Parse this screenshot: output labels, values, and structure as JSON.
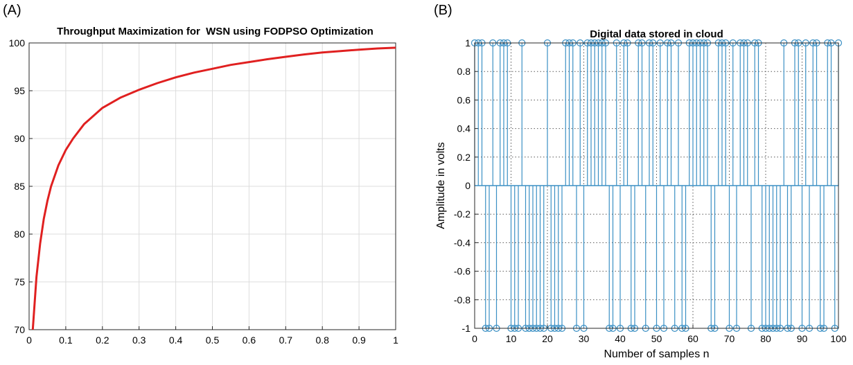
{
  "panels": {
    "a_label": "(A)",
    "b_label": "(B)"
  },
  "chart_data": [
    {
      "type": "line",
      "title": "Throughput Maximization for  WSN using FODPSO Optimization",
      "xlabel": "",
      "ylabel": "",
      "xlim": [
        0,
        1
      ],
      "ylim": [
        70,
        100
      ],
      "xticks": [
        0,
        0.1,
        0.2,
        0.3,
        0.4,
        0.5,
        0.6,
        0.7,
        0.8,
        0.9,
        1
      ],
      "xtick_labels": [
        "0",
        "0.1",
        "0.2",
        "0.3",
        "0.4",
        "0.5",
        "0.6",
        "0.7",
        "0.8",
        "0.9",
        "1"
      ],
      "yticks": [
        70,
        75,
        80,
        85,
        90,
        95,
        100
      ],
      "ytick_labels": [
        "70",
        "75",
        "80",
        "85",
        "90",
        "95",
        "100"
      ],
      "grid": true,
      "series": [
        {
          "color": "#e02020",
          "x": [
            0.01,
            0.02,
            0.03,
            0.04,
            0.05,
            0.06,
            0.08,
            0.1,
            0.12,
            0.15,
            0.2,
            0.25,
            0.3,
            0.35,
            0.4,
            0.45,
            0.5,
            0.55,
            0.6,
            0.65,
            0.7,
            0.75,
            0.8,
            0.85,
            0.9,
            0.95,
            1.0
          ],
          "y": [
            70.0,
            75.5,
            79.0,
            81.6,
            83.5,
            85.0,
            87.2,
            88.8,
            90.0,
            91.5,
            93.2,
            94.3,
            95.1,
            95.8,
            96.4,
            96.9,
            97.3,
            97.7,
            98.0,
            98.3,
            98.55,
            98.8,
            99.0,
            99.15,
            99.3,
            99.42,
            99.5
          ]
        }
      ]
    },
    {
      "type": "stem",
      "title": "Digital data stored in cloud",
      "xlabel": "Number of samples n",
      "ylabel": "Amplitude in volts",
      "xlim": [
        0,
        100
      ],
      "ylim": [
        -1,
        1
      ],
      "xticks": [
        0,
        10,
        20,
        30,
        40,
        50,
        60,
        70,
        80,
        90,
        100
      ],
      "xtick_labels": [
        "0",
        "10",
        "20",
        "30",
        "40",
        "50",
        "60",
        "70",
        "80",
        "90",
        "100"
      ],
      "yticks": [
        -1,
        -0.8,
        -0.6,
        -0.4,
        -0.2,
        0,
        0.2,
        0.4,
        0.6,
        0.8,
        1
      ],
      "ytick_labels": [
        "-1",
        "-0.8",
        "-0.6",
        "-0.4",
        "-0.2",
        "0",
        "0.2",
        "0.4",
        "0.6",
        "0.8",
        "1"
      ],
      "grid": true,
      "series": [
        {
          "color": "#3a8fc4",
          "x": [
            0,
            1,
            2,
            3,
            4,
            5,
            6,
            7,
            8,
            9,
            10,
            11,
            12,
            13,
            14,
            15,
            16,
            17,
            18,
            19,
            20,
            21,
            22,
            23,
            24,
            25,
            26,
            27,
            28,
            29,
            30,
            31,
            32,
            33,
            34,
            35,
            36,
            37,
            38,
            39,
            40,
            41,
            42,
            43,
            44,
            45,
            46,
            47,
            48,
            49,
            50,
            51,
            52,
            53,
            54,
            55,
            56,
            57,
            58,
            59,
            60,
            61,
            62,
            63,
            64,
            65,
            66,
            67,
            68,
            69,
            70,
            71,
            72,
            73,
            74,
            75,
            76,
            77,
            78,
            79,
            80,
            81,
            82,
            83,
            84,
            85,
            86,
            87,
            88,
            89,
            90,
            91,
            92,
            93,
            94,
            95,
            96,
            97,
            98,
            99,
            100
          ],
          "y": [
            1,
            1,
            1,
            -1,
            -1,
            1,
            -1,
            1,
            1,
            1,
            -1,
            -1,
            -1,
            1,
            -1,
            -1,
            -1,
            -1,
            -1,
            -1,
            1,
            -1,
            -1,
            -1,
            -1,
            1,
            1,
            1,
            -1,
            1,
            -1,
            1,
            1,
            1,
            1,
            1,
            1,
            -1,
            -1,
            1,
            -1,
            1,
            1,
            -1,
            -1,
            1,
            1,
            -1,
            1,
            1,
            -1,
            1,
            -1,
            1,
            1,
            -1,
            1,
            -1,
            -1,
            1,
            1,
            1,
            1,
            1,
            1,
            -1,
            -1,
            1,
            1,
            1,
            -1,
            1,
            -1,
            1,
            1,
            1,
            -1,
            1,
            1,
            -1,
            -1,
            -1,
            -1,
            -1,
            -1,
            1,
            -1,
            -1,
            1,
            1,
            -1,
            1,
            -1,
            1,
            1,
            -1,
            -1,
            1,
            1,
            -1,
            1
          ]
        }
      ]
    }
  ]
}
